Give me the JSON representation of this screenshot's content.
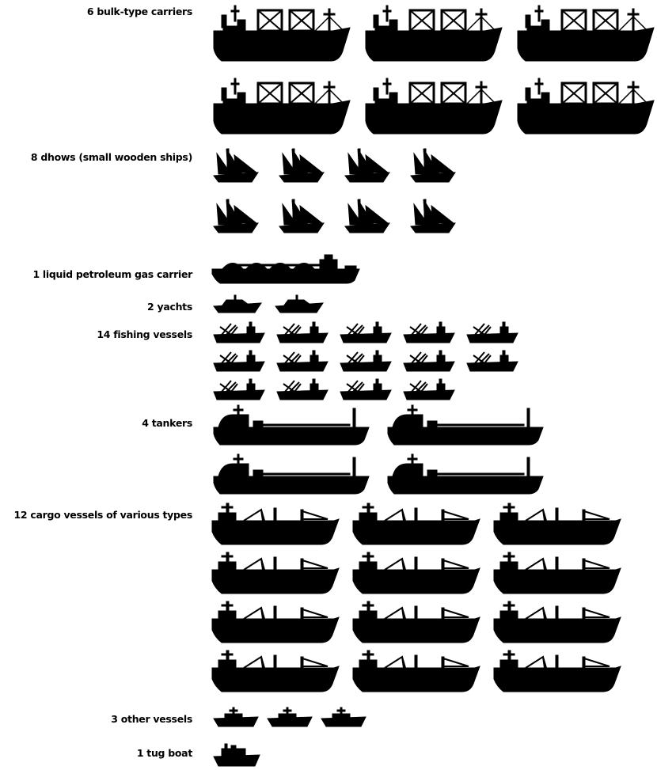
{
  "chart_data": {
    "type": "pictograph",
    "unit": "one icon = one vessel",
    "categories": [
      {
        "label": "6 bulk-type carriers",
        "count": 6,
        "icon": "bulk-carrier-icon"
      },
      {
        "label": "8 dhows (small wooden ships)",
        "count": 8,
        "icon": "dhow-icon"
      },
      {
        "label": "1 liquid petroleum gas carrier",
        "count": 1,
        "icon": "lpg-carrier-icon"
      },
      {
        "label": "2 yachts",
        "count": 2,
        "icon": "yacht-icon"
      },
      {
        "label": "14 fishing vessels",
        "count": 14,
        "icon": "fishing-vessel-icon"
      },
      {
        "label": "4 tankers",
        "count": 4,
        "icon": "tanker-icon"
      },
      {
        "label": "12 cargo vessels of various types",
        "count": 12,
        "icon": "cargo-vessel-icon"
      },
      {
        "label": "3 other vessels",
        "count": 3,
        "icon": "other-vessel-icon"
      },
      {
        "label": "1 tug boat",
        "count": 1,
        "icon": "tug-boat-icon"
      }
    ],
    "colors": {
      "icon": "#000000",
      "background": "#ffffff"
    }
  }
}
